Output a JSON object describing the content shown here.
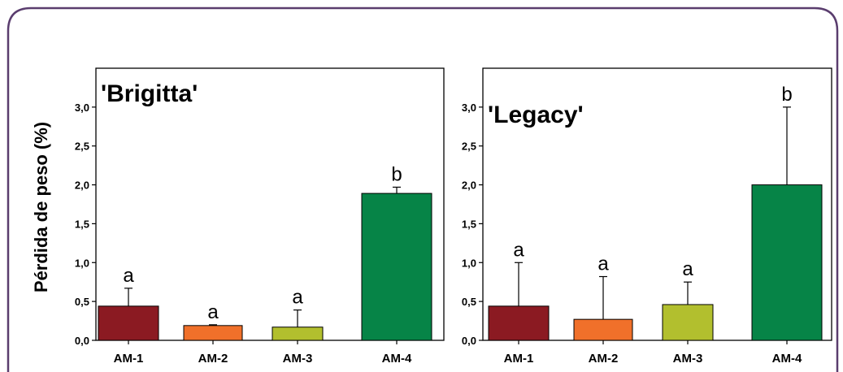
{
  "ylabel": "Pérdida de peso (%)",
  "colors": {
    "frame": "#5a3d6e",
    "AM-1": "#8b1a22",
    "AM-2": "#f0702a",
    "AM-3": "#b2bf2e",
    "AM-4": "#068447"
  },
  "chart_data": [
    {
      "type": "bar",
      "title": "'Brigitta'",
      "categories": [
        "AM-1",
        "AM-2",
        "AM-3",
        "AM-4"
      ],
      "values": [
        0.44,
        0.19,
        0.17,
        1.89
      ],
      "error_plus": [
        0.23,
        0.01,
        0.22,
        0.08
      ],
      "letters": [
        "a",
        "a",
        "a",
        "b"
      ],
      "ylim": [
        0,
        3.5
      ],
      "yticks": [
        "0,0",
        "0,5",
        "1,0",
        "1,5",
        "2,0",
        "2,5",
        "3,0"
      ],
      "ylabel": "Pérdida de peso (%)"
    },
    {
      "type": "bar",
      "title": "'Legacy'",
      "categories": [
        "AM-1",
        "AM-2",
        "AM-3",
        "AM-4"
      ],
      "values": [
        0.44,
        0.27,
        0.46,
        2.0
      ],
      "error_plus": [
        0.56,
        0.55,
        0.29,
        1.0
      ],
      "letters": [
        "a",
        "a",
        "a",
        "b"
      ],
      "ylim": [
        0,
        3.5
      ],
      "yticks": [
        "0,0",
        "0,5",
        "1,0",
        "1,5",
        "2,0",
        "2,5",
        "3,0"
      ]
    }
  ]
}
